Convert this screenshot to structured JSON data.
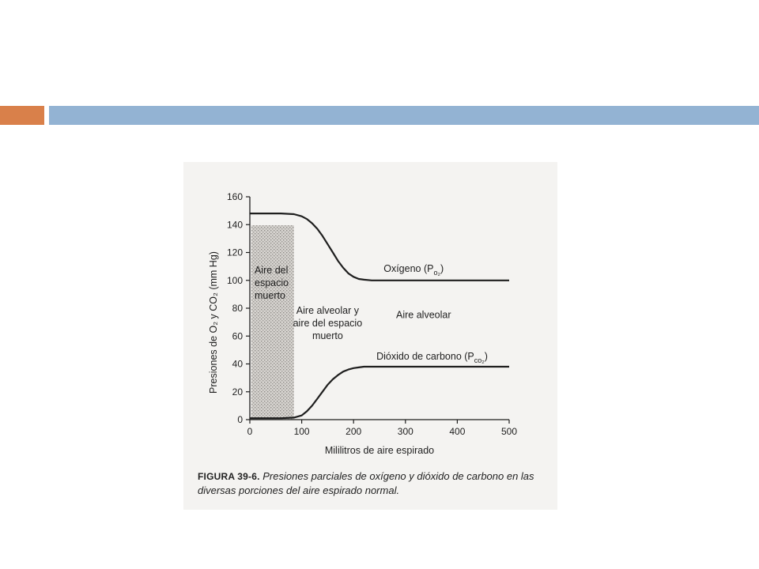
{
  "theme": {
    "accent_orange": "#d9804a",
    "accent_blue": "#93b3d3",
    "ink": "#1e1e1e",
    "shade": "#a9a6a2"
  },
  "chart_data": {
    "type": "line",
    "title": "",
    "xlabel": "Mililitros de aire espirado",
    "ylabel": "Presiones de O₂ y CO₂ (mm Hg)",
    "xlim": [
      0,
      500
    ],
    "ylim": [
      0,
      160
    ],
    "x_ticks": [
      0,
      100,
      200,
      300,
      400,
      500
    ],
    "y_ticks": [
      0,
      20,
      40,
      60,
      80,
      100,
      120,
      140,
      160
    ],
    "grid": false,
    "shaded_region": {
      "x": [
        0,
        85
      ],
      "label_lines": [
        "Aire del",
        "espacio",
        "muerto"
      ]
    },
    "series": [
      {
        "name": "Oxígeno (Po₂)",
        "label_text": "Oxígeno (P",
        "label_sub": "o₂",
        "x": [
          0,
          60,
          85,
          100,
          110,
          120,
          130,
          140,
          150,
          160,
          170,
          180,
          190,
          200,
          210,
          220,
          235,
          260,
          300,
          400,
          500
        ],
        "y": [
          148,
          148,
          147.5,
          146,
          144,
          141,
          137,
          132,
          126,
          120,
          114,
          109,
          105,
          102.5,
          101,
          100.5,
          100,
          100,
          100,
          100,
          100
        ]
      },
      {
        "name": "Dióxido de carbono (Pco₂)",
        "label_text": "Dióxido de carbono (P",
        "label_sub": "co₂",
        "x": [
          0,
          60,
          85,
          100,
          110,
          120,
          130,
          140,
          150,
          160,
          170,
          180,
          190,
          200,
          210,
          220,
          235,
          260,
          300,
          400,
          500
        ],
        "y": [
          1,
          1,
          1.5,
          3,
          6,
          10,
          15,
          20,
          25,
          29,
          32,
          34.5,
          36,
          37,
          37.5,
          38,
          38,
          38,
          38,
          38,
          38
        ]
      }
    ],
    "annotations": [
      {
        "lines": [
          "Aire alveolar y",
          "aire del espacio",
          "muerto"
        ],
        "x": 150,
        "y": 76
      },
      {
        "lines": [
          "Aire alveolar"
        ],
        "x": 335,
        "y": 73
      }
    ]
  },
  "caption": {
    "label": "FIGURA 39-6.",
    "text": "Presiones parciales de oxígeno y dióxido de carbono en las diversas porciones del aire espirado normal."
  }
}
